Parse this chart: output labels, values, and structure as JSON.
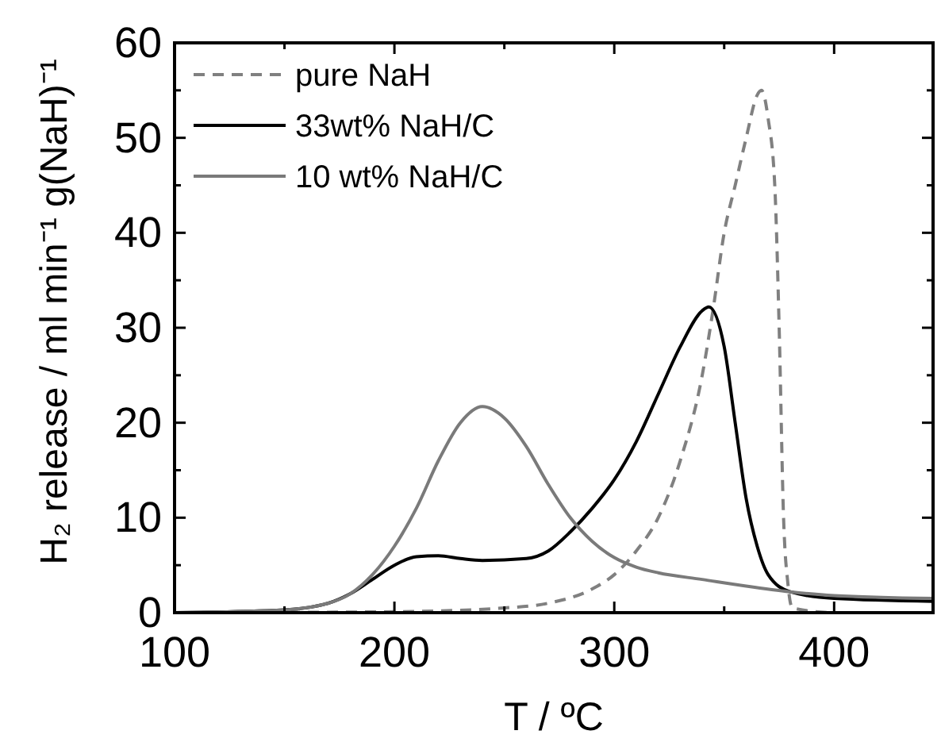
{
  "chart_data": {
    "type": "line",
    "xlabel": "T / ºC",
    "ylabel": "H₂ release / ml min⁻¹ g(NaH)⁻¹",
    "xlim": [
      100,
      445
    ],
    "ylim": [
      0,
      60
    ],
    "xticks": [
      100,
      {
        "value": 150,
        "label": null
      },
      200,
      {
        "value": 250,
        "label": null
      },
      300,
      {
        "value": 350,
        "label": null
      },
      400
    ],
    "yticks": [
      0,
      {
        "value": 5,
        "label": null
      },
      10,
      {
        "value": 15,
        "label": null
      },
      20,
      {
        "value": 25,
        "label": null
      },
      30,
      {
        "value": 35,
        "label": null
      },
      40,
      {
        "value": 45,
        "label": null
      },
      50,
      {
        "value": 55,
        "label": null
      },
      60
    ],
    "legend": "top left",
    "grid": false,
    "series": [
      {
        "name": "pure NaH",
        "color": "#808080",
        "line_style": "dashed",
        "x": [
          100,
          200,
          250,
          270,
          290,
          300,
          310,
          320,
          330,
          340,
          345,
          350,
          355,
          360,
          365,
          367,
          370,
          373,
          375,
          377,
          379,
          381,
          400,
          445
        ],
        "values": [
          0,
          0.1,
          0.5,
          1,
          2.5,
          4,
          6.5,
          10,
          16,
          25,
          32,
          40,
          45,
          50,
          54.5,
          55,
          52,
          45,
          30,
          10,
          3,
          0.5,
          0,
          0
        ]
      },
      {
        "name": "33wt% NaH/C",
        "color": "#000000",
        "line_style": "solid",
        "x": [
          100,
          150,
          170,
          180,
          190,
          200,
          210,
          220,
          230,
          240,
          260,
          270,
          280,
          290,
          300,
          310,
          320,
          330,
          340,
          343,
          350,
          355,
          360,
          365,
          370,
          380,
          400,
          445
        ],
        "values": [
          0,
          0.3,
          1,
          2,
          3.5,
          5,
          5.9,
          6,
          5.7,
          5.5,
          5.7,
          6.5,
          8.5,
          11,
          14,
          18,
          23,
          28,
          31.8,
          32.2,
          28,
          20,
          12,
          7,
          4,
          2.2,
          1.5,
          1.2
        ]
      },
      {
        "name": "10 wt% NaH/C",
        "color": "#7a7a7a",
        "line_style": "solid",
        "x": [
          100,
          150,
          170,
          180,
          190,
          200,
          210,
          220,
          230,
          240,
          250,
          260,
          270,
          280,
          290,
          300,
          310,
          320,
          340,
          360,
          380,
          400,
          445
        ],
        "values": [
          0,
          0.3,
          1,
          2,
          4,
          7,
          11,
          16,
          20,
          21.7,
          20.5,
          17.5,
          13.5,
          10,
          7.5,
          5.8,
          4.8,
          4.2,
          3.5,
          2.8,
          2.2,
          1.8,
          1.5
        ]
      }
    ]
  }
}
